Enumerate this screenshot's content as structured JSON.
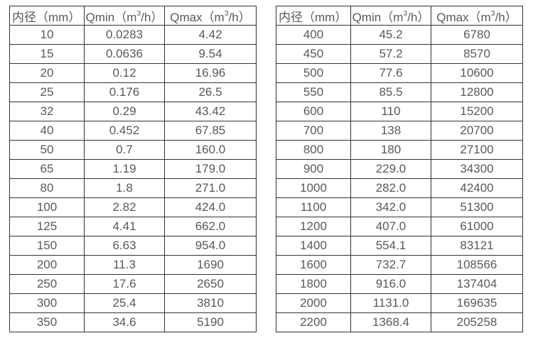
{
  "colors": {
    "background": "#ffffff",
    "border": "#333333",
    "text": "#595959"
  },
  "tables": [
    {
      "name": "flow-rate-table-small-diameters",
      "headers": [
        {
          "pre": "内径（mm）",
          "sup": "",
          "post": ""
        },
        {
          "pre": "Qmin（m",
          "sup": "3",
          "post": "/h）"
        },
        {
          "pre": "Qmax（m",
          "sup": "3",
          "post": "/h）"
        }
      ],
      "rows": [
        [
          "10",
          "0.0283",
          "4.42"
        ],
        [
          "15",
          "0.0636",
          "9.54"
        ],
        [
          "20",
          "0.12",
          "16.96"
        ],
        [
          "25",
          "0.176",
          "26.5"
        ],
        [
          "32",
          "0.29",
          "43.42"
        ],
        [
          "40",
          "0.452",
          "67.85"
        ],
        [
          "50",
          "0.7",
          "160.0"
        ],
        [
          "65",
          "1.19",
          "179.0"
        ],
        [
          "80",
          "1.8",
          "271.0"
        ],
        [
          "100",
          "2.82",
          "424.0"
        ],
        [
          "125",
          "4.41",
          "662.0"
        ],
        [
          "150",
          "6.63",
          "954.0"
        ],
        [
          "200",
          "11.3",
          "1690"
        ],
        [
          "250",
          "17.6",
          "2650"
        ],
        [
          "300",
          "25.4",
          "3810"
        ],
        [
          "350",
          "34.6",
          "5190"
        ]
      ]
    },
    {
      "name": "flow-rate-table-large-diameters",
      "headers": [
        {
          "pre": "内径（mm）",
          "sup": "",
          "post": ""
        },
        {
          "pre": "Qmin（m",
          "sup": "3",
          "post": "/h）"
        },
        {
          "pre": "Qmax（m",
          "sup": "3",
          "post": "/h）"
        }
      ],
      "rows": [
        [
          "400",
          "45.2",
          "6780"
        ],
        [
          "450",
          "57.2",
          "8570"
        ],
        [
          "500",
          "77.6",
          "10600"
        ],
        [
          "550",
          "85.5",
          "12800"
        ],
        [
          "600",
          "110",
          "15200"
        ],
        [
          "700",
          "138",
          "20700"
        ],
        [
          "800",
          "180",
          "27100"
        ],
        [
          "900",
          "229.0",
          "34300"
        ],
        [
          "1000",
          "282.0",
          "42400"
        ],
        [
          "1100",
          "342.0",
          "51300"
        ],
        [
          "1200",
          "407.0",
          "61000"
        ],
        [
          "1400",
          "554.1",
          "83121"
        ],
        [
          "1600",
          "732.7",
          "108566"
        ],
        [
          "1800",
          "916.0",
          "137404"
        ],
        [
          "2000",
          "1131.0",
          "169635"
        ],
        [
          "2200",
          "1368.4",
          "205258"
        ]
      ]
    }
  ]
}
